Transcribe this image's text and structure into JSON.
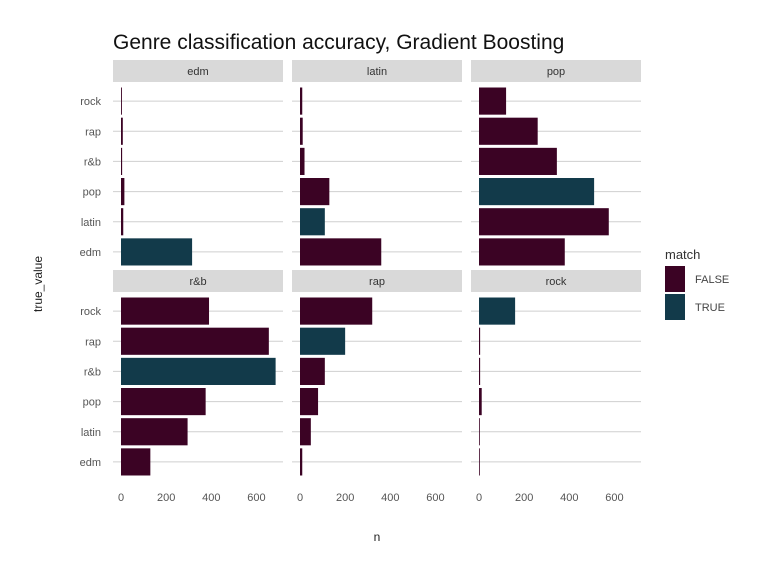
{
  "chart_data": {
    "type": "bar",
    "orientation": "horizontal",
    "title": "Genre classification accuracy, Gradient Boosting",
    "xlabel": "n",
    "ylabel": "true_value",
    "xlim": [
      0,
      700
    ],
    "x_ticks": [
      0,
      200,
      400,
      600
    ],
    "categories": [
      "edm",
      "latin",
      "pop",
      "r&b",
      "rap",
      "rock"
    ],
    "legend": {
      "title": "match",
      "position": "right",
      "entries": [
        {
          "label": "FALSE",
          "color": "#3b0324"
        },
        {
          "label": "TRUE",
          "color": "#123a4a"
        }
      ]
    },
    "grid": true,
    "facets": [
      {
        "label": "edm",
        "values": [
          315,
          10,
          15,
          5,
          8,
          4
        ],
        "match": [
          true,
          false,
          false,
          false,
          false,
          false
        ]
      },
      {
        "label": "latin",
        "values": [
          360,
          110,
          130,
          20,
          12,
          10
        ],
        "match": [
          false,
          true,
          false,
          false,
          false,
          false
        ]
      },
      {
        "label": "pop",
        "values": [
          380,
          575,
          510,
          345,
          260,
          120
        ],
        "match": [
          false,
          false,
          true,
          false,
          false,
          false
        ]
      },
      {
        "label": "r&b",
        "values": [
          130,
          295,
          375,
          685,
          655,
          390
        ],
        "match": [
          false,
          false,
          false,
          true,
          false,
          false
        ]
      },
      {
        "label": "rap",
        "values": [
          10,
          48,
          80,
          110,
          200,
          320
        ],
        "match": [
          false,
          false,
          false,
          false,
          true,
          false
        ]
      },
      {
        "label": "rock",
        "values": [
          3,
          3,
          12,
          5,
          5,
          160
        ],
        "match": [
          false,
          false,
          false,
          false,
          false,
          true
        ]
      }
    ]
  }
}
